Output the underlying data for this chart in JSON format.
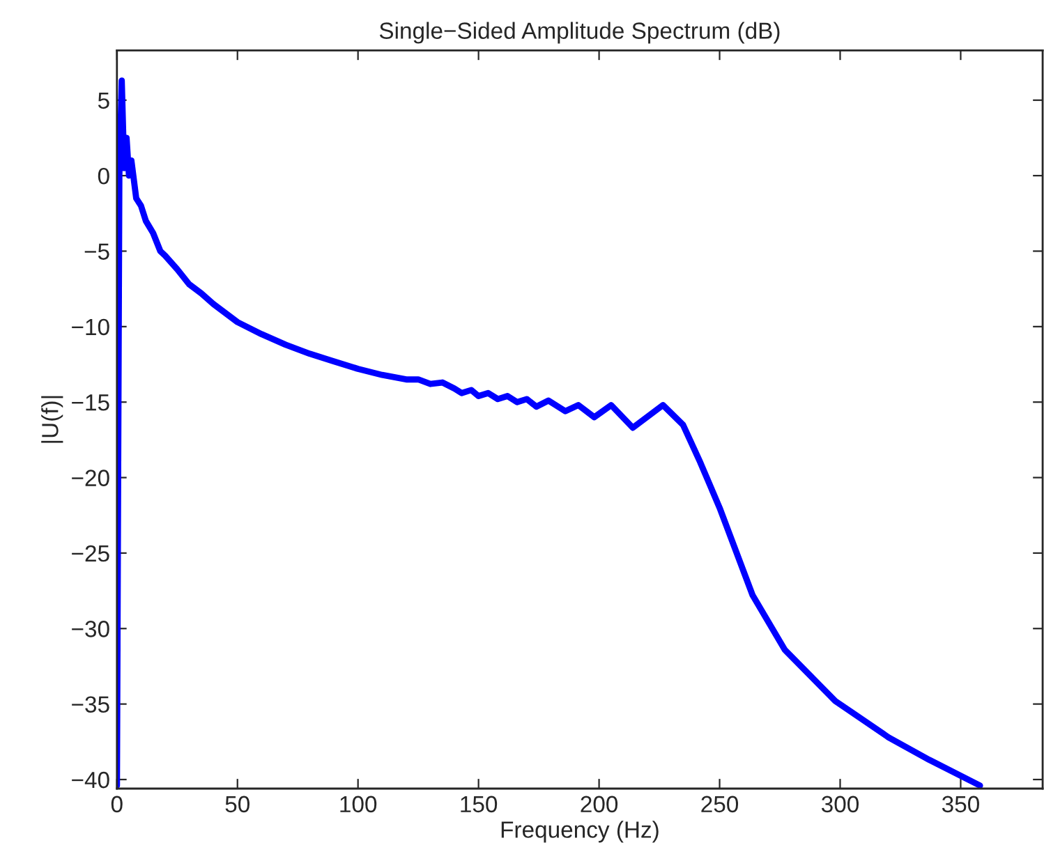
{
  "chart_data": {
    "type": "line",
    "title": "Single−Sided Amplitude Spectrum (dB)",
    "xlabel": "Frequency (Hz)",
    "ylabel": "|U(f)|",
    "series": [
      {
        "color": "#0000ff",
        "x": [
          0,
          0.5,
          1,
          2,
          3,
          4,
          5,
          6,
          8,
          10,
          12,
          15,
          18,
          20,
          25,
          30,
          35,
          40,
          50,
          60,
          70,
          80,
          90,
          100,
          110,
          120,
          125,
          130,
          135,
          140,
          143,
          147,
          150,
          154,
          158,
          162,
          166,
          170,
          174,
          179,
          186,
          191.4,
          198,
          205,
          214,
          226.5,
          234.8,
          242,
          250,
          263.7,
          277,
          298,
          320,
          337,
          358
        ],
        "values": [
          -40.4,
          -20,
          0,
          6.3,
          0.5,
          2.5,
          0,
          1,
          -1.5,
          -2,
          -3,
          -3.8,
          -5,
          -5.3,
          -6.2,
          -7.2,
          -7.8,
          -8.5,
          -9.7,
          -10.5,
          -11.2,
          -11.8,
          -12.3,
          -12.8,
          -13.2,
          -13.5,
          -13.5,
          -13.8,
          -13.7,
          -14.1,
          -14.4,
          -14.2,
          -14.6,
          -14.4,
          -14.8,
          -14.6,
          -15.0,
          -14.8,
          -15.3,
          -14.9,
          -15.6,
          -15.2,
          -16.0,
          -15.2,
          -16.7,
          -15.2,
          -16.5,
          -19,
          -22,
          -27.8,
          -31.4,
          -34.8,
          -37.2,
          -38.7,
          -40.4
        ]
      }
    ],
    "xlim": [
      0,
      384
    ],
    "ylim": [
      -40.6,
      8.3
    ],
    "xticks": [
      0,
      50,
      100,
      150,
      200,
      250,
      300,
      350
    ],
    "yticks": [
      -40,
      -35,
      -30,
      -25,
      -20,
      -15,
      -10,
      -5,
      0,
      5
    ],
    "grid": false,
    "legend": false,
    "line_style": "solid",
    "marker": "none"
  }
}
